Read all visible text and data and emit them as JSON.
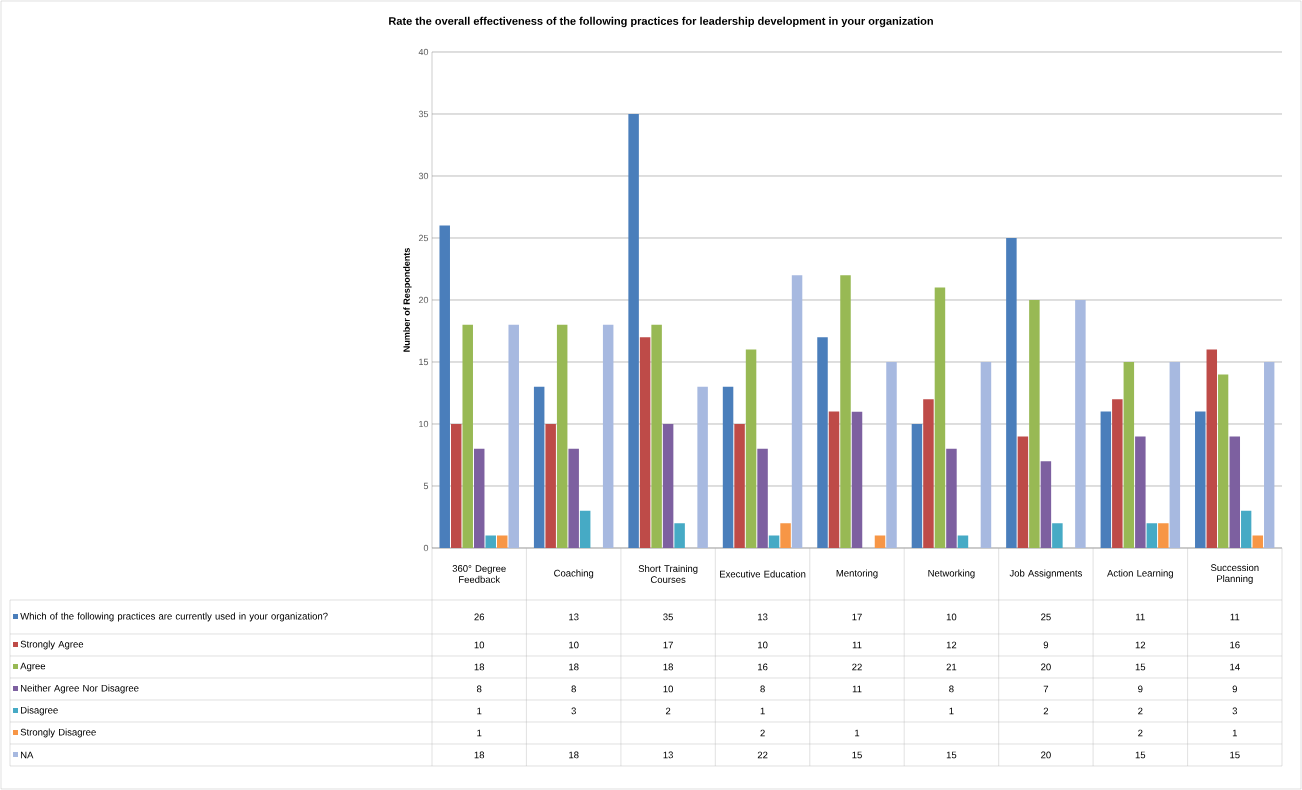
{
  "chart_data": {
    "type": "bar",
    "title": "Rate the overall effectiveness of the following practices for leadership development in your organization",
    "ylabel": "Number of Respondents",
    "categories": [
      "360° Degree Feedback",
      "Coaching",
      "Short Training Courses",
      "Executive Education",
      "Mentoring",
      "Networking",
      "Job Assignments",
      "Action Learning",
      "Succession Planning"
    ],
    "series": [
      {
        "name": "Which of the following practices are currently used in your organization?",
        "color": "#4a7ebb",
        "values": [
          26,
          13,
          35,
          13,
          17,
          10,
          25,
          11,
          11
        ]
      },
      {
        "name": "Strongly Agree",
        "color": "#be4b48",
        "values": [
          10,
          10,
          17,
          10,
          11,
          12,
          9,
          12,
          16
        ]
      },
      {
        "name": "Agree",
        "color": "#98b954",
        "values": [
          18,
          18,
          18,
          16,
          22,
          21,
          20,
          15,
          14
        ]
      },
      {
        "name": "Neither Agree Nor Disagree",
        "color": "#7d60a0",
        "values": [
          8,
          8,
          10,
          8,
          11,
          8,
          7,
          9,
          9
        ]
      },
      {
        "name": "Disagree",
        "color": "#46aac5",
        "values": [
          1,
          3,
          2,
          1,
          null,
          1,
          2,
          2,
          3
        ]
      },
      {
        "name": "Strongly Disagree",
        "color": "#f79646",
        "values": [
          1,
          null,
          null,
          2,
          1,
          null,
          null,
          2,
          1
        ]
      },
      {
        "name": "NA",
        "color": "#a7b9e0",
        "values": [
          18,
          18,
          13,
          22,
          15,
          15,
          20,
          15,
          15
        ]
      }
    ],
    "ylim": [
      0,
      40
    ],
    "yticks": [
      0,
      5,
      10,
      15,
      20,
      25,
      30,
      35,
      40
    ],
    "grid": "y",
    "legend": "bottom",
    "data_labels": true
  }
}
